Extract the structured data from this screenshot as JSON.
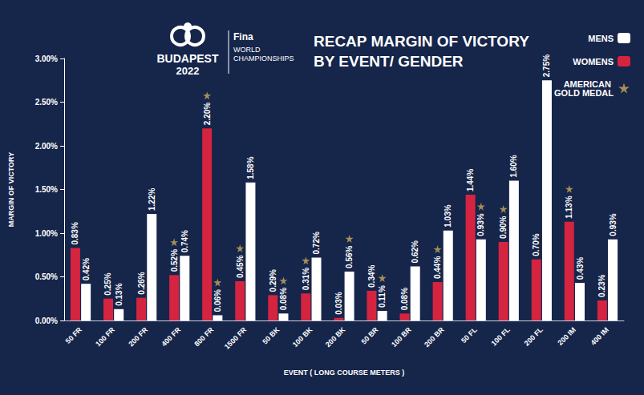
{
  "chart_data": {
    "type": "bar",
    "title": "RECAP MARGIN OF VICTORY\nBY EVENT/ GENDER",
    "annotations": [
      "BUDAPEST",
      "2022",
      "Fina",
      "WORLD",
      "CHAMPIONSHIPS"
    ],
    "x_label": "EVENT ( LONG COURSE METERS )",
    "y_label": "MARGIN OF VICTORY",
    "categories": [
      "50 FR",
      "100 FR",
      "200 FR",
      "400 FR",
      "800 FR",
      "1500 FR",
      "50 BK",
      "100 BK",
      "200 BK",
      "50 BR",
      "100 BR",
      "200 BR",
      "50 FL",
      "100 FL",
      "200 FL",
      "200 IM",
      "400 IM"
    ],
    "series": [
      {
        "name": "MENS",
        "color": "#ffffff",
        "values": [
          0.42,
          0.13,
          1.22,
          0.74,
          0.06,
          1.58,
          0.08,
          0.72,
          0.56,
          0.11,
          0.62,
          1.03,
          0.93,
          1.6,
          2.75,
          0.43,
          0.93
        ],
        "value_labels": [
          "0.42%",
          "0.13%",
          "1.22%",
          "0.74%",
          "0.06%",
          "1.58%",
          "0.08%",
          "0.72%",
          "0.56%",
          "0.11%",
          "0.62%",
          "1.03%",
          "0.93%",
          "1.60%",
          "2.75%",
          "0.43%",
          "0.93%"
        ],
        "american_gold_medal": [
          false,
          false,
          false,
          false,
          true,
          false,
          true,
          false,
          true,
          true,
          false,
          false,
          true,
          false,
          false,
          false,
          false
        ]
      },
      {
        "name": "WOMENS",
        "color": "#d42440",
        "values": [
          0.83,
          0.25,
          0.26,
          0.52,
          2.2,
          0.45,
          0.29,
          0.31,
          0.03,
          0.34,
          0.08,
          0.44,
          1.44,
          0.9,
          0.7,
          1.13,
          0.23
        ],
        "value_labels": [
          "0.83%",
          "0.25%",
          "0.26%",
          "0.52%",
          "2.20%",
          "0.45%",
          "0.29%",
          "0.31%",
          "0.03%",
          "0.34%",
          "0.08%",
          "0.44%",
          "1.44%",
          "0.90%",
          "0.70%",
          "1.13%",
          "0.23%"
        ],
        "american_gold_medal": [
          false,
          false,
          false,
          true,
          true,
          true,
          false,
          true,
          false,
          false,
          false,
          true,
          false,
          true,
          false,
          true,
          false
        ]
      }
    ],
    "medal": {
      "name": "AMERICAN GOLD MEDAL",
      "color": "#c9a75d",
      "marker": "star"
    },
    "ylim": [
      0,
      3
    ],
    "yticks": [
      {
        "value": 0,
        "label": "0.00%"
      },
      {
        "value": 0.5,
        "label": "0.50%"
      },
      {
        "value": 1,
        "label": "1.00%"
      },
      {
        "value": 1.5,
        "label": "1.50%"
      },
      {
        "value": 2,
        "label": "2.00%"
      },
      {
        "value": 2.5,
        "label": "2.50%"
      },
      {
        "value": 3,
        "label": "3.00%"
      }
    ],
    "grid": false,
    "data_labels": true,
    "legend": "top right"
  }
}
